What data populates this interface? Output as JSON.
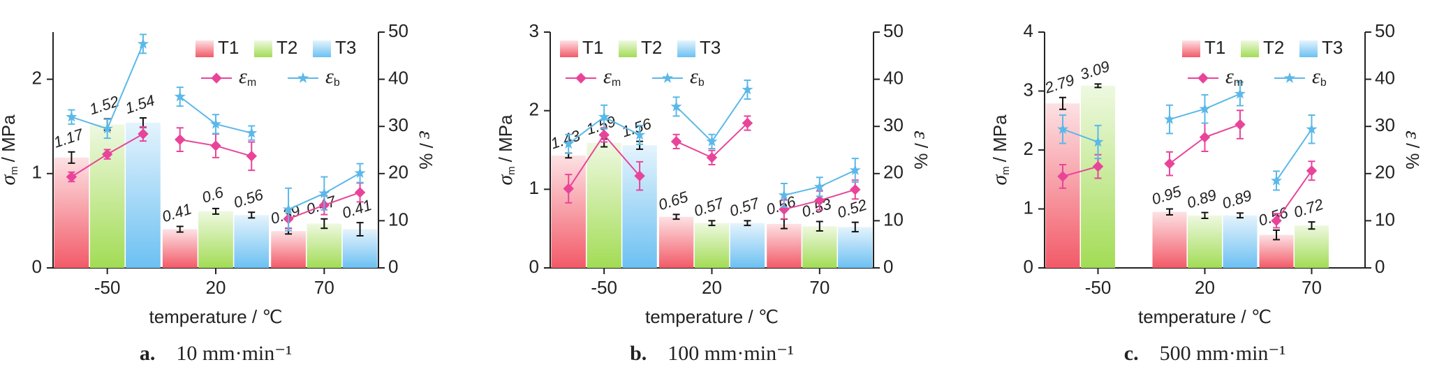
{
  "chart_data": [
    {
      "type": "bar",
      "caption_letter": "a.",
      "caption": "10 mm·min⁻¹",
      "xlabel": "temperature / ℃",
      "ylabel": "σ",
      "ylabel_sub": "m",
      "ylabel_unit": "/ MPa",
      "y2label": "ε",
      "y2label_unit": "/ %",
      "categories": [
        "-50",
        "20",
        "70"
      ],
      "ylim": [
        0,
        2.5
      ],
      "yticks": [
        0,
        1,
        2
      ],
      "y2lim": [
        0,
        50
      ],
      "y2ticks": [
        0,
        10,
        20,
        30,
        40,
        50
      ],
      "legend": "upper right",
      "series": [
        {
          "name": "T1",
          "color": "#f25a68",
          "values": [
            1.17,
            0.41,
            0.39
          ],
          "errors": [
            0.06,
            0.03,
            0.03
          ]
        },
        {
          "name": "T2",
          "color": "#a2dc55",
          "values": [
            1.52,
            0.6,
            0.47
          ],
          "errors": [
            0.06,
            0.03,
            0.05
          ]
        },
        {
          "name": "T3",
          "color": "#6cc0f2",
          "values": [
            1.54,
            0.56,
            0.41
          ],
          "errors": [
            0.05,
            0.03,
            0.07
          ]
        },
        {
          "name": "ε",
          "subscript": "m",
          "type": "line",
          "axis": "y2",
          "marker": "diamond",
          "color": "#e8449a",
          "values": [
            [
              19.3,
              24.1,
              28.4
            ],
            [
              27.2,
              25.9,
              23.7
            ],
            [
              10.4,
              13.3,
              16.0
            ]
          ],
          "errors": [
            [
              1,
              1,
              1.5
            ],
            [
              2.5,
              2.5,
              3
            ],
            [
              2,
              2,
              2
            ]
          ]
        },
        {
          "name": "ε",
          "subscript": "b",
          "type": "line",
          "axis": "y2",
          "marker": "star",
          "color": "#5bb8e8",
          "values": [
            [
              32,
              29.5,
              47.5
            ],
            [
              36.3,
              30.5,
              28.6
            ],
            [
              12.4,
              15.8,
              20.1
            ]
          ],
          "errors": [
            [
              1.5,
              2,
              2
            ],
            [
              2,
              2,
              1.5
            ],
            [
              4.5,
              3.5,
              2
            ]
          ]
        }
      ]
    },
    {
      "type": "bar",
      "caption_letter": "b.",
      "caption": "100 mm·min⁻¹",
      "xlabel": "temperature / ℃",
      "ylabel": "σ",
      "ylabel_sub": "m",
      "ylabel_unit": "/ MPa",
      "y2label": "ε",
      "y2label_unit": "/ %",
      "categories": [
        "-50",
        "20",
        "70"
      ],
      "ylim": [
        0,
        3
      ],
      "yticks": [
        0,
        1,
        2,
        3
      ],
      "y2lim": [
        0,
        50
      ],
      "y2ticks": [
        0,
        10,
        20,
        30,
        40,
        50
      ],
      "legend": "upper left",
      "series": [
        {
          "name": "T1",
          "color": "#f25a68",
          "values": [
            1.43,
            0.65,
            0.56
          ],
          "errors": [
            0.03,
            0.03,
            0.06
          ]
        },
        {
          "name": "T2",
          "color": "#a2dc55",
          "values": [
            1.59,
            0.57,
            0.53
          ],
          "errors": [
            0.05,
            0.03,
            0.06
          ]
        },
        {
          "name": "T3",
          "color": "#6cc0f2",
          "values": [
            1.56,
            0.57,
            0.52
          ],
          "errors": [
            0.05,
            0.03,
            0.06
          ]
        },
        {
          "name": "ε",
          "subscript": "m",
          "type": "line",
          "axis": "y2",
          "marker": "diamond",
          "color": "#e8449a",
          "values": [
            [
              16.8,
              28.2,
              19.5
            ],
            [
              26.8,
              23.4,
              30.7
            ],
            [
              12.4,
              14.3,
              16.6
            ]
          ],
          "errors": [
            [
              3,
              1.5,
              3
            ],
            [
              1.5,
              1.5,
              1.5
            ],
            [
              2,
              2,
              2
            ]
          ]
        },
        {
          "name": "ε",
          "subscript": "b",
          "type": "line",
          "axis": "y2",
          "marker": "star",
          "color": "#5bb8e8",
          "values": [
            [
              26.3,
              32,
              28.2
            ],
            [
              34.2,
              26.8,
              37.8
            ],
            [
              15.4,
              17.2,
              20.7
            ]
          ],
          "errors": [
            [
              2,
              2.5,
              2
            ],
            [
              2,
              1.5,
              2
            ],
            [
              2.5,
              2,
              2.5
            ]
          ]
        }
      ]
    },
    {
      "type": "bar",
      "caption_letter": "c.",
      "caption": "500 mm·min⁻¹",
      "xlabel": "temperature / ℃",
      "ylabel": "σ",
      "ylabel_sub": "m",
      "ylabel_unit": "/ MPa",
      "y2label": "ε",
      "y2label_unit": "/ %",
      "categories": [
        "-50",
        "20",
        "70"
      ],
      "ylim": [
        0,
        4
      ],
      "yticks": [
        0,
        1,
        2,
        3,
        4
      ],
      "y2lim": [
        0,
        50
      ],
      "y2ticks": [
        0,
        10,
        20,
        30,
        40,
        50
      ],
      "legend": "upper right",
      "series": [
        {
          "name": "T1",
          "color": "#f25a68",
          "values": [
            2.79,
            0.95,
            0.56
          ],
          "errors": [
            0.1,
            0.05,
            0.08
          ]
        },
        {
          "name": "T2",
          "color": "#a2dc55",
          "values": [
            3.09,
            0.89,
            0.72
          ],
          "errors": [
            0.03,
            0.05,
            0.06
          ]
        },
        {
          "name": "T3",
          "color": "#6cc0f2",
          "values": [
            null,
            0.89,
            null
          ],
          "errors": [
            null,
            0.04,
            null
          ]
        },
        {
          "name": "ε",
          "subscript": "m",
          "type": "line",
          "axis": "y2",
          "marker": "diamond",
          "color": "#e8449a",
          "values": [
            [
              19.4,
              21.5,
              null
            ],
            [
              22.1,
              27.7,
              30.4
            ],
            [
              10,
              20.6,
              null
            ]
          ],
          "errors": [
            [
              2.5,
              2.5,
              null
            ],
            [
              2.5,
              3,
              3
            ],
            [
              1.5,
              2,
              null
            ]
          ]
        },
        {
          "name": "ε",
          "subscript": "b",
          "type": "line",
          "axis": "y2",
          "marker": "star",
          "color": "#5bb8e8",
          "values": [
            [
              29.4,
              26.7,
              null
            ],
            [
              31.5,
              33.7,
              36.9
            ],
            [
              18.5,
              29.4,
              null
            ]
          ],
          "errors": [
            [
              3,
              3.5,
              null
            ],
            [
              3,
              3,
              2.5
            ],
            [
              2,
              3,
              null
            ]
          ]
        }
      ]
    }
  ]
}
